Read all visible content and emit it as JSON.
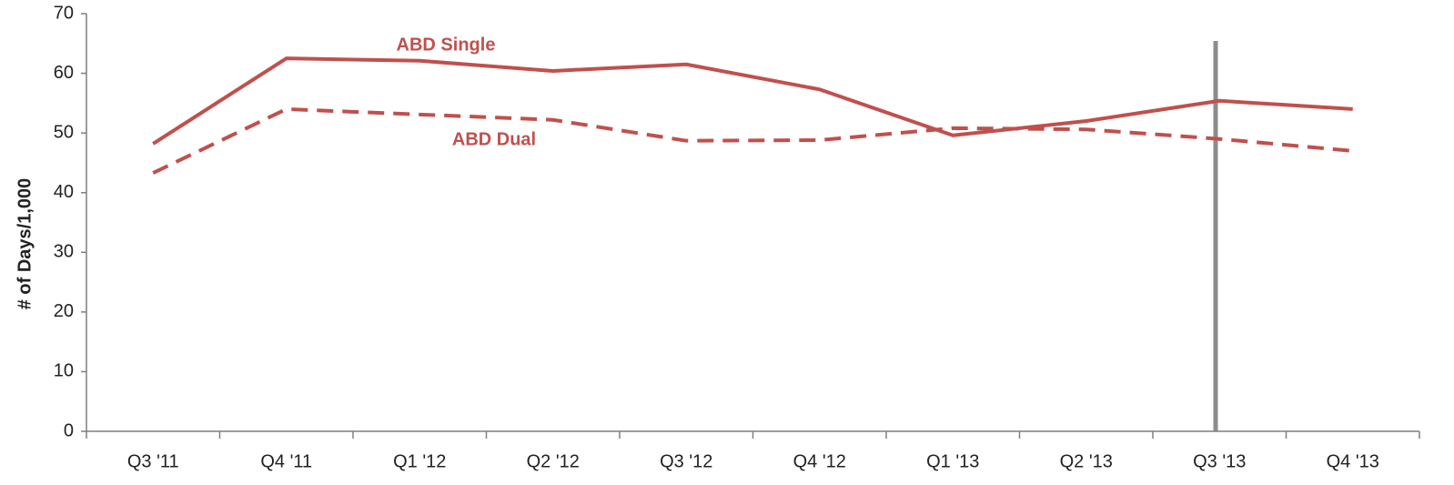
{
  "chart_data": {
    "type": "line",
    "y_label": "# of Days/1,000",
    "categories": [
      "Q3 '11",
      "Q4 '11",
      "Q1 '12",
      "Q2 '12",
      "Q3 '12",
      "Q4 '12",
      "Q1 '13",
      "Q2 '13",
      "Q3 '13",
      "Q4 '13"
    ],
    "series": [
      {
        "name": "ABD Single",
        "color": "#c0504d",
        "style": "solid",
        "values": [
          48.2,
          62.5,
          62.1,
          60.4,
          61.5,
          57.3,
          49.6,
          52.0,
          55.4,
          54.0
        ]
      },
      {
        "name": "ABD Dual",
        "color": "#c0504d",
        "style": "dashed",
        "values": [
          43.3,
          54.0,
          53.1,
          52.2,
          48.7,
          48.8,
          50.8,
          50.6,
          49.0,
          47.0
        ]
      }
    ],
    "ylim": [
      0,
      70
    ],
    "yticks": [
      0,
      10,
      20,
      30,
      40,
      50,
      60,
      70
    ],
    "grid": false
  }
}
